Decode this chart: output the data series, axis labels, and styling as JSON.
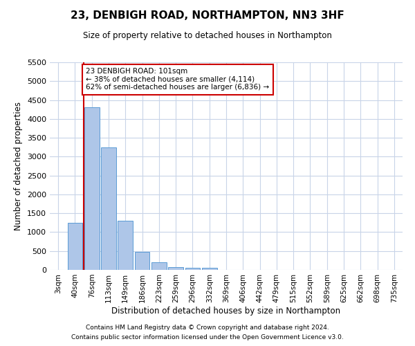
{
  "title": "23, DENBIGH ROAD, NORTHAMPTON, NN3 3HF",
  "subtitle": "Size of property relative to detached houses in Northampton",
  "xlabel": "Distribution of detached houses by size in Northampton",
  "ylabel": "Number of detached properties",
  "footnote1": "Contains HM Land Registry data © Crown copyright and database right 2024.",
  "footnote2": "Contains public sector information licensed under the Open Government Licence v3.0.",
  "bar_labels": [
    "3sqm",
    "40sqm",
    "76sqm",
    "113sqm",
    "149sqm",
    "186sqm",
    "223sqm",
    "259sqm",
    "296sqm",
    "332sqm",
    "369sqm",
    "406sqm",
    "442sqm",
    "479sqm",
    "515sqm",
    "552sqm",
    "589sqm",
    "625sqm",
    "662sqm",
    "698sqm",
    "735sqm"
  ],
  "bar_values": [
    0,
    1250,
    4300,
    3250,
    1300,
    480,
    200,
    80,
    60,
    50,
    0,
    0,
    0,
    0,
    0,
    0,
    0,
    0,
    0,
    0,
    0
  ],
  "bar_color": "#aec6e8",
  "bar_edge_color": "#5b9bd5",
  "line_x_index": 2,
  "annotation_line1": "23 DENBIGH ROAD: 101sqm",
  "annotation_line2": "← 38% of detached houses are smaller (4,114)",
  "annotation_line3": "62% of semi-detached houses are larger (6,836) →",
  "vline_color": "#cc0000",
  "annotation_box_color": "#ffffff",
  "annotation_box_edge_color": "#cc0000",
  "ylim": [
    0,
    5500
  ],
  "yticks": [
    0,
    500,
    1000,
    1500,
    2000,
    2500,
    3000,
    3500,
    4000,
    4500,
    5000,
    5500
  ],
  "background_color": "#ffffff",
  "grid_color": "#c8d4e8"
}
